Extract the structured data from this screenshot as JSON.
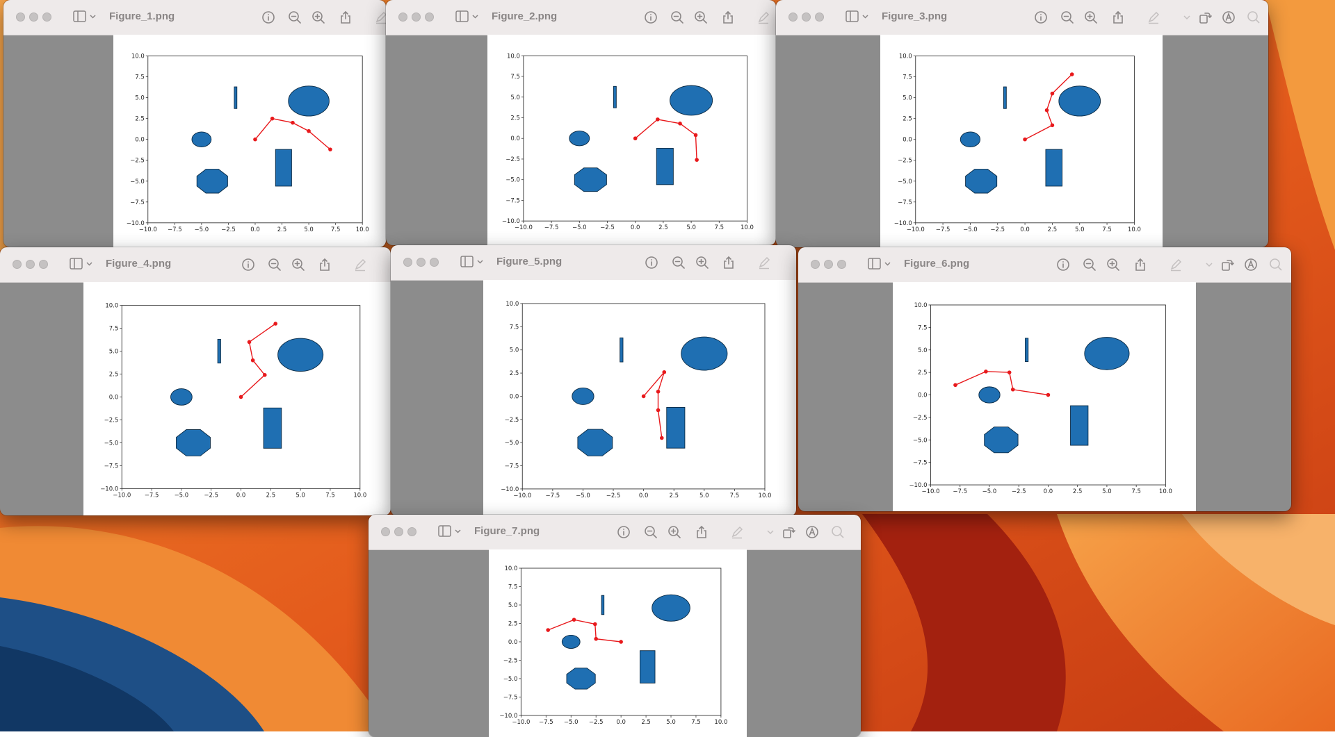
{
  "desktop": {
    "wallpaper": "macOS Ventura orange wallpaper",
    "accent": "#f07f2c"
  },
  "colors": {
    "shape_fill": "#1f6fb2",
    "shape_edge": "#0a2a44",
    "line": "#e8191c",
    "window_bg": "#8c8c8c",
    "titlebar": "#eeeaea"
  },
  "toolbar_icons": [
    "sidebar-toggle-icon",
    "info-icon",
    "zoom-out-icon",
    "zoom-in-icon",
    "share-icon",
    "markup-pen-icon",
    "rotate-icon",
    "markup-circle-icon",
    "search-icon"
  ],
  "axis": {
    "xlim": [
      -10,
      10
    ],
    "ylim": [
      -10,
      10
    ],
    "x_ticks": [
      "−10.0",
      "−7.5",
      "−5.0",
      "−2.5",
      "0.0",
      "2.5",
      "5.0",
      "7.5",
      "10.0"
    ],
    "y_ticks": [
      "−10.0",
      "−7.5",
      "−5.0",
      "−2.5",
      "0.0",
      "2.5",
      "5.0",
      "7.5",
      "10.0"
    ]
  },
  "static_shapes": {
    "ellipse_small": {
      "cx": -5,
      "cy": 0,
      "rx": 0.9,
      "ry": 0.9
    },
    "ellipse_large": {
      "cx": 5,
      "cy": 4.6,
      "rx": 1.9,
      "ry": 1.8
    },
    "thin_bar": {
      "x": -1.95,
      "y": 3.7,
      "w": 0.25,
      "h": 2.6
    },
    "rectangle": {
      "x": 1.9,
      "y": -5.6,
      "w": 1.5,
      "h": 4.4
    },
    "octagon_center": [
      -4,
      -5
    ],
    "octagon_radius": 1.55
  },
  "windows": [
    {
      "title": "Figure_1.png",
      "chain": [
        [
          0,
          0
        ],
        [
          1.6,
          2.5
        ],
        [
          3.5,
          2
        ],
        [
          5,
          1
        ],
        [
          7,
          -1.2
        ]
      ]
    },
    {
      "title": "Figure_2.png",
      "chain": [
        [
          0,
          0
        ],
        [
          2,
          2.3
        ],
        [
          4,
          1.8
        ],
        [
          5.4,
          0.4
        ],
        [
          5.5,
          -2.6
        ]
      ]
    },
    {
      "title": "Figure_3.png",
      "chain": [
        [
          0,
          0
        ],
        [
          2.5,
          1.7
        ],
        [
          2,
          3.5
        ],
        [
          2.5,
          5.5
        ],
        [
          4.3,
          7.8
        ]
      ]
    },
    {
      "title": "Figure_4.png",
      "chain": [
        [
          0,
          0
        ],
        [
          2,
          2.4
        ],
        [
          1,
          4
        ],
        [
          0.7,
          6
        ],
        [
          2.9,
          8
        ]
      ]
    },
    {
      "title": "Figure_5.png",
      "chain": [
        [
          0,
          0
        ],
        [
          1.7,
          2.6
        ],
        [
          1.2,
          0.5
        ],
        [
          1.2,
          -1.5
        ],
        [
          1.5,
          -4.5
        ]
      ]
    },
    {
      "title": "Figure_6.png",
      "chain": [
        [
          0,
          0
        ],
        [
          -3,
          0.6
        ],
        [
          -3.3,
          2.5
        ],
        [
          -5.3,
          2.6
        ],
        [
          -7.9,
          1.1
        ]
      ]
    },
    {
      "title": "Figure_7.png",
      "chain": [
        [
          0,
          0
        ],
        [
          -2.5,
          0.4
        ],
        [
          -2.6,
          2.4
        ],
        [
          -4.7,
          3
        ],
        [
          -7.3,
          1.6
        ]
      ]
    }
  ]
}
